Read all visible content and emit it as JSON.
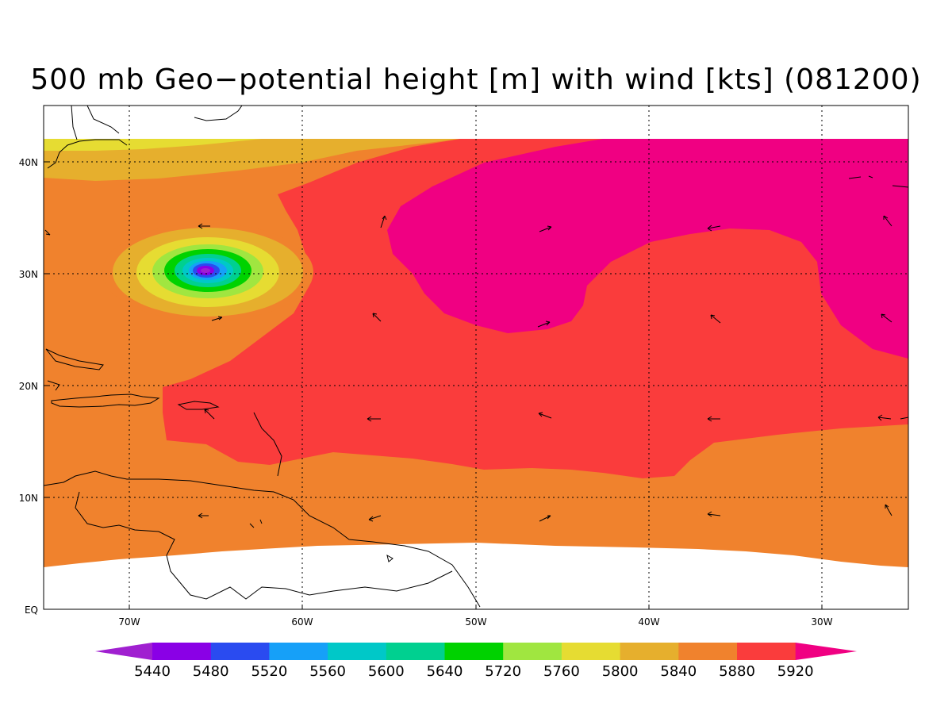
{
  "title": "500 mb Geo−potential height [m] with wind [kts] (081200)",
  "axes": {
    "lon_ticks": [
      "70W",
      "60W",
      "50W",
      "40W",
      "30W"
    ],
    "lat_ticks": [
      "EQ",
      "10N",
      "20N",
      "30N",
      "40N"
    ],
    "lon_range": [
      -75,
      -25
    ],
    "lat_range": [
      0,
      45
    ]
  },
  "colorbar": {
    "labels": [
      "5440",
      "5480",
      "5520",
      "5560",
      "5600",
      "5640",
      "5720",
      "5760",
      "5800",
      "5840",
      "5880",
      "5920"
    ],
    "colors": [
      "#a020d0",
      "#8a00e6",
      "#2a4bf0",
      "#16a0f8",
      "#00c8c8",
      "#00d090",
      "#00d200",
      "#a0e640",
      "#e6dc32",
      "#e6af2d",
      "#f0822d",
      "#fa3c3c",
      "#f00082"
    ]
  },
  "legend_colors": {
    "c5840": "#e6af2d",
    "c5880": "#f0822d",
    "c5920": "#fa3c3c",
    "c5960": "#f00082",
    "c5800": "#e6dc32"
  }
}
